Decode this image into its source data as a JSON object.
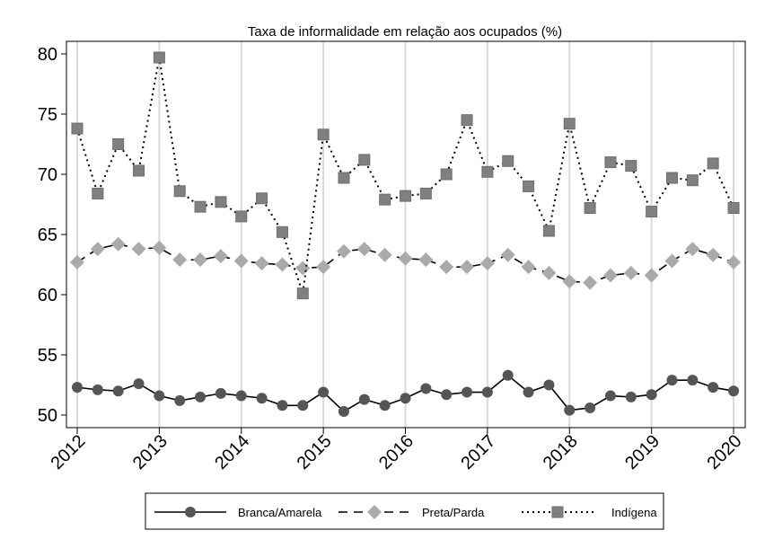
{
  "chart_data": {
    "type": "line",
    "title": "Taxa de informalidade em relação aos ocupados (%)",
    "xlabel": "",
    "ylabel": "",
    "x": [
      2012,
      2012.25,
      2012.5,
      2012.75,
      2013,
      2013.25,
      2013.5,
      2013.75,
      2014,
      2014.25,
      2014.5,
      2014.75,
      2015,
      2015.25,
      2015.5,
      2015.75,
      2016,
      2016.25,
      2016.5,
      2016.75,
      2017,
      2017.25,
      2017.5,
      2017.75,
      2018,
      2018.25,
      2018.5,
      2018.75,
      2019,
      2019.25,
      2019.5,
      2019.75,
      2020
    ],
    "xlim": [
      2011.95,
      2020.1
    ],
    "ylim": [
      49,
      81
    ],
    "xticks": [
      "2012",
      "2013",
      "2014",
      "2015",
      "2016",
      "2017",
      "2018",
      "2019",
      "2020"
    ],
    "yticks": [
      "50",
      "55",
      "60",
      "65",
      "70",
      "75",
      "80"
    ],
    "grid": "vertical",
    "legend_position": "bottom",
    "series": [
      {
        "name": "Branca/Amarela",
        "line": "solid",
        "marker": "circle",
        "color": "#555555",
        "values": [
          52.3,
          52.1,
          52.0,
          52.6,
          51.6,
          51.2,
          51.5,
          51.8,
          51.6,
          51.4,
          50.8,
          50.8,
          51.9,
          50.3,
          51.3,
          50.8,
          51.4,
          52.2,
          51.7,
          51.9,
          51.9,
          53.3,
          51.9,
          52.5,
          50.4,
          50.6,
          51.6,
          51.5,
          51.7,
          52.9,
          52.9,
          52.3,
          52.0
        ]
      },
      {
        "name": "Preta/Parda",
        "line": "dashed",
        "marker": "diamond",
        "color": "#aaaaaa",
        "values": [
          62.7,
          63.8,
          64.2,
          63.8,
          63.9,
          62.9,
          62.9,
          63.2,
          62.8,
          62.6,
          62.5,
          62.2,
          62.3,
          63.6,
          63.8,
          63.3,
          63.0,
          62.9,
          62.3,
          62.3,
          62.6,
          63.3,
          62.3,
          61.8,
          61.1,
          61.0,
          61.6,
          61.8,
          61.6,
          62.8,
          63.8,
          63.3,
          62.7
        ]
      },
      {
        "name": "Indígena",
        "line": "dotted",
        "marker": "square",
        "color": "#808080",
        "values": [
          73.8,
          68.4,
          72.5,
          70.3,
          79.7,
          68.6,
          67.3,
          67.7,
          66.5,
          68.0,
          65.2,
          60.1,
          73.3,
          69.7,
          71.2,
          67.9,
          68.2,
          68.4,
          70.0,
          74.5,
          70.2,
          71.1,
          69.0,
          65.3,
          74.2,
          67.2,
          71.0,
          70.7,
          66.9,
          69.7,
          69.5,
          70.9,
          67.2
        ]
      }
    ]
  }
}
